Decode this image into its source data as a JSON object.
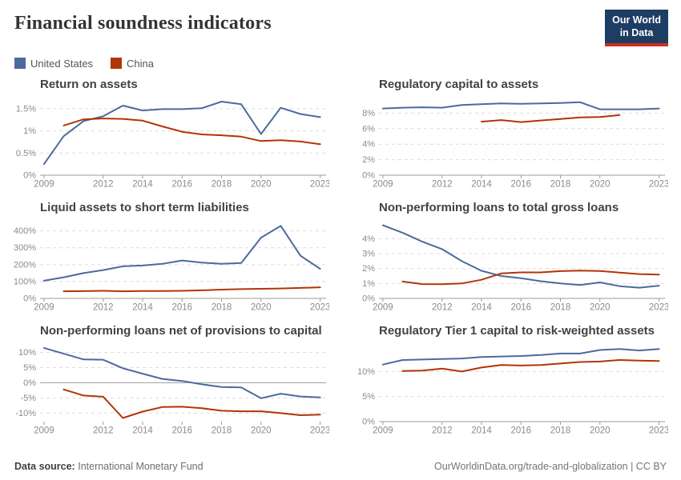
{
  "header": {
    "title": "Financial soundness indicators",
    "logo_line1": "Our World",
    "logo_line2": "in Data"
  },
  "colors": {
    "united_states": "#4C6A9C",
    "china": "#B13507",
    "logo_bg": "#1d3d63",
    "logo_underline": "#cf2d22"
  },
  "legend": [
    {
      "label": "United States",
      "color": "#4C6A9C"
    },
    {
      "label": "China",
      "color": "#B13507"
    }
  ],
  "footer": {
    "source_label": "Data source:",
    "source_value": "International Monetary Fund",
    "credit": "OurWorldinData.org/trade-and-globalization | CC BY"
  },
  "chart_data": [
    {
      "type": "line",
      "title": "Return on assets",
      "xlabel": "",
      "ylabel": "",
      "xlim": [
        2008.8,
        2023.3
      ],
      "ylim": [
        0,
        1.75
      ],
      "grid": "dashed-horizontal",
      "legend_position": "top-left-shared",
      "yticks": [
        {
          "value": 0,
          "label": "0%"
        },
        {
          "value": 0.5,
          "label": "0.5%"
        },
        {
          "value": 1,
          "label": "1%"
        },
        {
          "value": 1.5,
          "label": "1.5%"
        }
      ],
      "xticks": [
        2009,
        2012,
        2014,
        2016,
        2018,
        2020,
        2023
      ],
      "zero_axis": false,
      "series": [
        {
          "name": "United States",
          "color": "#4C6A9C",
          "x": [
            2009,
            2010,
            2011,
            2012,
            2013,
            2014,
            2015,
            2016,
            2017,
            2018,
            2019,
            2020,
            2021,
            2022,
            2023
          ],
          "values": [
            0.25,
            0.88,
            1.22,
            1.33,
            1.57,
            1.46,
            1.49,
            1.49,
            1.51,
            1.66,
            1.6,
            0.93,
            1.52,
            1.38,
            1.31
          ]
        },
        {
          "name": "China",
          "color": "#B13507",
          "x": [
            2010,
            2011,
            2012,
            2013,
            2014,
            2015,
            2016,
            2017,
            2018,
            2019,
            2020,
            2021,
            2022,
            2023
          ],
          "values": [
            1.12,
            1.26,
            1.28,
            1.27,
            1.23,
            1.1,
            0.98,
            0.92,
            0.9,
            0.87,
            0.77,
            0.79,
            0.76,
            0.7
          ]
        }
      ]
    },
    {
      "type": "line",
      "title": "Regulatory capital to assets",
      "xlabel": "",
      "ylabel": "",
      "xlim": [
        2008.8,
        2023.3
      ],
      "ylim": [
        0,
        10
      ],
      "grid": "dashed-horizontal",
      "yticks": [
        {
          "value": 0,
          "label": "0%"
        },
        {
          "value": 2,
          "label": "2%"
        },
        {
          "value": 4,
          "label": "4%"
        },
        {
          "value": 6,
          "label": "6%"
        },
        {
          "value": 8,
          "label": "8%"
        }
      ],
      "xticks": [
        2009,
        2012,
        2014,
        2016,
        2018,
        2020,
        2023
      ],
      "zero_axis": false,
      "series": [
        {
          "name": "United States",
          "color": "#4C6A9C",
          "x": [
            2009,
            2010,
            2011,
            2012,
            2013,
            2014,
            2015,
            2016,
            2017,
            2018,
            2019,
            2020,
            2021,
            2022,
            2023
          ],
          "values": [
            8.6,
            8.7,
            8.75,
            8.7,
            9.05,
            9.15,
            9.25,
            9.2,
            9.25,
            9.3,
            9.4,
            8.5,
            8.5,
            8.5,
            8.6
          ]
        },
        {
          "name": "China",
          "color": "#B13507",
          "x": [
            2014,
            2015,
            2016,
            2017,
            2018,
            2019,
            2020,
            2021
          ],
          "values": [
            6.9,
            7.1,
            6.85,
            7.05,
            7.25,
            7.45,
            7.5,
            7.75
          ]
        }
      ]
    },
    {
      "type": "line",
      "title": "Liquid assets to short term liabilities",
      "xlabel": "",
      "ylabel": "",
      "xlim": [
        2008.8,
        2023.3
      ],
      "ylim": [
        0,
        460
      ],
      "grid": "dashed-horizontal",
      "yticks": [
        {
          "value": 0,
          "label": "0%"
        },
        {
          "value": 100,
          "label": "100%"
        },
        {
          "value": 200,
          "label": "200%"
        },
        {
          "value": 300,
          "label": "300%"
        },
        {
          "value": 400,
          "label": "400%"
        }
      ],
      "xticks": [
        2009,
        2012,
        2014,
        2016,
        2018,
        2020,
        2023
      ],
      "zero_axis": false,
      "series": [
        {
          "name": "United States",
          "color": "#4C6A9C",
          "x": [
            2009,
            2010,
            2011,
            2012,
            2013,
            2014,
            2015,
            2016,
            2017,
            2018,
            2019,
            2020,
            2021,
            2022,
            2023
          ],
          "values": [
            105,
            125,
            150,
            168,
            190,
            195,
            205,
            225,
            212,
            205,
            210,
            360,
            430,
            253,
            175
          ]
        },
        {
          "name": "China",
          "color": "#B13507",
          "x": [
            2010,
            2011,
            2012,
            2013,
            2014,
            2015,
            2016,
            2017,
            2018,
            2019,
            2020,
            2021,
            2022,
            2023
          ],
          "values": [
            42,
            43,
            45,
            42,
            44,
            44,
            45,
            48,
            52,
            55,
            57,
            59,
            62,
            66
          ]
        }
      ]
    },
    {
      "type": "line",
      "title": "Non-performing loans to total gross loans",
      "xlabel": "",
      "ylabel": "",
      "xlim": [
        2008.8,
        2023.3
      ],
      "ylim": [
        0,
        5.2
      ],
      "grid": "dashed-horizontal",
      "yticks": [
        {
          "value": 0,
          "label": "0%"
        },
        {
          "value": 1,
          "label": "1%"
        },
        {
          "value": 2,
          "label": "2%"
        },
        {
          "value": 3,
          "label": "3%"
        },
        {
          "value": 4,
          "label": "4%"
        }
      ],
      "xticks": [
        2009,
        2012,
        2014,
        2016,
        2018,
        2020,
        2023
      ],
      "zero_axis": false,
      "series": [
        {
          "name": "United States",
          "color": "#4C6A9C",
          "x": [
            2009,
            2010,
            2011,
            2012,
            2013,
            2014,
            2015,
            2016,
            2017,
            2018,
            2019,
            2020,
            2021,
            2022,
            2023
          ],
          "values": [
            4.9,
            4.4,
            3.8,
            3.3,
            2.5,
            1.85,
            1.5,
            1.35,
            1.15,
            1.0,
            0.9,
            1.07,
            0.82,
            0.72,
            0.85
          ]
        },
        {
          "name": "China",
          "color": "#B13507",
          "x": [
            2010,
            2011,
            2012,
            2013,
            2014,
            2015,
            2016,
            2017,
            2018,
            2019,
            2020,
            2021,
            2022,
            2023
          ],
          "values": [
            1.13,
            0.96,
            0.95,
            1.0,
            1.25,
            1.67,
            1.74,
            1.74,
            1.83,
            1.86,
            1.84,
            1.73,
            1.63,
            1.6
          ]
        }
      ]
    },
    {
      "type": "line",
      "title": "Non-performing loans net of provisions to capital",
      "xlabel": "",
      "ylabel": "",
      "xlim": [
        2008.8,
        2023.3
      ],
      "ylim": [
        -12.8,
        12.8
      ],
      "grid": "dashed-horizontal",
      "yticks": [
        {
          "value": -10,
          "label": "-10%"
        },
        {
          "value": -5,
          "label": "-5%"
        },
        {
          "value": 0,
          "label": "0%"
        },
        {
          "value": 5,
          "label": "5%"
        },
        {
          "value": 10,
          "label": "10%"
        }
      ],
      "xticks": [
        2009,
        2012,
        2014,
        2016,
        2018,
        2020,
        2023
      ],
      "zero_axis": true,
      "series": [
        {
          "name": "United States",
          "color": "#4C6A9C",
          "x": [
            2009,
            2010,
            2011,
            2012,
            2013,
            2014,
            2015,
            2016,
            2017,
            2018,
            2019,
            2020,
            2021,
            2022,
            2023
          ],
          "values": [
            11.5,
            9.6,
            7.7,
            7.6,
            4.8,
            3.0,
            1.3,
            0.6,
            -0.5,
            -1.4,
            -1.5,
            -5.1,
            -3.6,
            -4.5,
            -4.8
          ]
        },
        {
          "name": "China",
          "color": "#B13507",
          "x": [
            2010,
            2011,
            2012,
            2013,
            2014,
            2015,
            2016,
            2017,
            2018,
            2019,
            2020,
            2021,
            2022,
            2023
          ],
          "values": [
            -2.2,
            -4.2,
            -4.6,
            -11.6,
            -9.5,
            -8.0,
            -7.9,
            -8.4,
            -9.2,
            -9.4,
            -9.4,
            -10.0,
            -10.7,
            -10.5
          ]
        }
      ]
    },
    {
      "type": "line",
      "title": "Regulatory Tier 1 capital to risk-weighted assets",
      "xlabel": "",
      "ylabel": "",
      "xlim": [
        2008.8,
        2023.3
      ],
      "ylim": [
        0,
        15.5
      ],
      "grid": "dashed-horizontal",
      "yticks": [
        {
          "value": 0,
          "label": "0%"
        },
        {
          "value": 5,
          "label": "5%"
        },
        {
          "value": 10,
          "label": "10%"
        }
      ],
      "xticks": [
        2009,
        2012,
        2014,
        2016,
        2018,
        2020,
        2023
      ],
      "zero_axis": false,
      "series": [
        {
          "name": "United States",
          "color": "#4C6A9C",
          "x": [
            2009,
            2010,
            2011,
            2012,
            2013,
            2014,
            2015,
            2016,
            2017,
            2018,
            2019,
            2020,
            2021,
            2022,
            2023
          ],
          "values": [
            11.4,
            12.3,
            12.4,
            12.5,
            12.6,
            12.9,
            13.0,
            13.1,
            13.3,
            13.6,
            13.6,
            14.3,
            14.5,
            14.2,
            14.5
          ]
        },
        {
          "name": "China",
          "color": "#B13507",
          "x": [
            2010,
            2011,
            2012,
            2013,
            2014,
            2015,
            2016,
            2017,
            2018,
            2019,
            2020,
            2021,
            2022,
            2023
          ],
          "values": [
            10.1,
            10.2,
            10.6,
            10.0,
            10.8,
            11.3,
            11.2,
            11.3,
            11.6,
            11.9,
            12.0,
            12.3,
            12.2,
            12.1
          ]
        }
      ]
    }
  ]
}
